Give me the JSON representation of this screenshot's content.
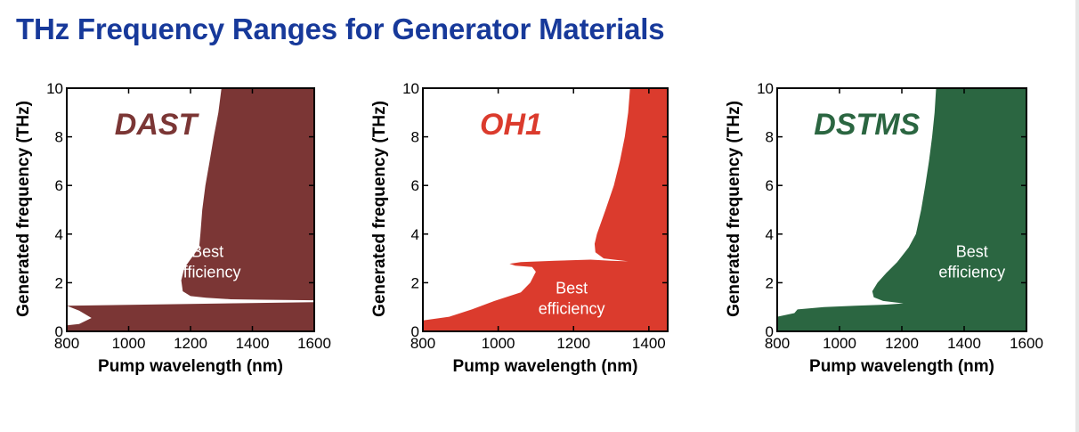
{
  "page": {
    "title": "THz Frequency Ranges for Generator Materials"
  },
  "chart_data": [
    {
      "type": "area",
      "title": "DAST",
      "title_color": "#7b3635",
      "fill_color": "#7b3635",
      "xlabel": "Pump wavelength (nm)",
      "ylabel": "Generated frequency (THz)",
      "xlim": [
        800,
        1600
      ],
      "ylim": [
        0,
        10
      ],
      "xticks": [
        "800",
        "1000",
        "1200",
        "1400",
        "1600"
      ],
      "yticks": [
        "0",
        "2",
        "4",
        "6",
        "8",
        "10"
      ],
      "annotation": {
        "lines": [
          "Best",
          "efficiency"
        ],
        "x": 1255,
        "y": 3.05
      },
      "regions": [
        [
          [
            800,
            0
          ],
          [
            800,
            0.25
          ],
          [
            840,
            0.3
          ],
          [
            880,
            0.55
          ],
          [
            840,
            0.85
          ],
          [
            800,
            1.05
          ],
          [
            1050,
            1.1
          ],
          [
            1600,
            1.2
          ],
          [
            1600,
            0
          ]
        ],
        [
          [
            1600,
            1.28
          ],
          [
            1430,
            1.3
          ],
          [
            1330,
            1.32
          ],
          [
            1250,
            1.38
          ],
          [
            1200,
            1.45
          ],
          [
            1175,
            1.65
          ],
          [
            1170,
            2.1
          ],
          [
            1180,
            2.6
          ],
          [
            1205,
            3.05
          ],
          [
            1228,
            3.45
          ],
          [
            1232,
            4
          ],
          [
            1238,
            5
          ],
          [
            1248,
            6
          ],
          [
            1262,
            7
          ],
          [
            1275,
            8
          ],
          [
            1290,
            9
          ],
          [
            1300,
            10
          ],
          [
            1600,
            10
          ]
        ]
      ]
    },
    {
      "type": "area",
      "title": "OH1",
      "title_color": "#db3b2d",
      "fill_color": "#db3b2d",
      "xlabel": "Pump wavelength (nm)",
      "ylabel": "Generated frequency (THz)",
      "xlim": [
        800,
        1450
      ],
      "ylim": [
        0,
        10
      ],
      "xticks": [
        "800",
        "1000",
        "1200",
        "1400"
      ],
      "yticks": [
        "0",
        "2",
        "4",
        "6",
        "8",
        "10"
      ],
      "annotation": {
        "lines": [
          "Best",
          "efficiency"
        ],
        "x": 1195,
        "y": 1.55
      },
      "regions": [
        [
          [
            800,
            0
          ],
          [
            800,
            0.45
          ],
          [
            870,
            0.6
          ],
          [
            930,
            0.9
          ],
          [
            990,
            1.25
          ],
          [
            1030,
            1.45
          ],
          [
            1060,
            1.6
          ],
          [
            1085,
            2.0
          ],
          [
            1100,
            2.45
          ],
          [
            1090,
            2.65
          ],
          [
            1045,
            2.7
          ],
          [
            1030,
            2.78
          ],
          [
            1060,
            2.85
          ],
          [
            1150,
            2.9
          ],
          [
            1245,
            2.95
          ],
          [
            1300,
            2.9
          ],
          [
            1345,
            2.88
          ],
          [
            1280,
            3.0
          ],
          [
            1258,
            3.25
          ],
          [
            1256,
            3.6
          ],
          [
            1262,
            4
          ],
          [
            1285,
            5
          ],
          [
            1307,
            6
          ],
          [
            1323,
            7
          ],
          [
            1336,
            8
          ],
          [
            1345,
            9
          ],
          [
            1350,
            10
          ],
          [
            1450,
            10
          ],
          [
            1450,
            0
          ]
        ]
      ]
    },
    {
      "type": "area",
      "title": "DSTMS",
      "title_color": "#2b6641",
      "fill_color": "#2b6641",
      "xlabel": "Pump wavelength (nm)",
      "ylabel": "Generated frequency (THz)",
      "xlim": [
        800,
        1600
      ],
      "ylim": [
        0,
        10
      ],
      "xticks": [
        "800",
        "1000",
        "1200",
        "1400",
        "1600"
      ],
      "yticks": [
        "0",
        "2",
        "4",
        "6",
        "8",
        "10"
      ],
      "annotation": {
        "lines": [
          "Best",
          "efficiency"
        ],
        "x": 1425,
        "y": 3.05
      },
      "regions": [
        [
          [
            800,
            0
          ],
          [
            800,
            0.6
          ],
          [
            855,
            0.75
          ],
          [
            865,
            0.9
          ],
          [
            950,
            1.0
          ],
          [
            1050,
            1.05
          ],
          [
            1150,
            1.1
          ],
          [
            1205,
            1.15
          ],
          [
            1140,
            1.25
          ],
          [
            1110,
            1.4
          ],
          [
            1105,
            1.65
          ],
          [
            1122,
            2.0
          ],
          [
            1150,
            2.4
          ],
          [
            1185,
            2.85
          ],
          [
            1222,
            3.45
          ],
          [
            1245,
            4
          ],
          [
            1262,
            5
          ],
          [
            1275,
            6
          ],
          [
            1287,
            7
          ],
          [
            1297,
            8
          ],
          [
            1305,
            9
          ],
          [
            1310,
            10
          ],
          [
            1600,
            10
          ],
          [
            1600,
            0
          ]
        ]
      ]
    }
  ]
}
